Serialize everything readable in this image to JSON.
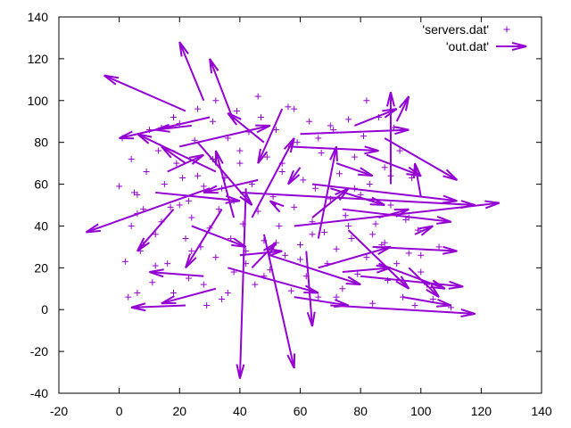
{
  "chart_data": {
    "type": "scatter",
    "xlim": [
      -20,
      140
    ],
    "ylim": [
      -40,
      140
    ],
    "xticks": [
      -20,
      0,
      20,
      40,
      60,
      80,
      100,
      120,
      140
    ],
    "yticks": [
      -40,
      -20,
      0,
      20,
      40,
      60,
      80,
      100,
      120,
      140
    ],
    "grid": false,
    "legend_position": "top-right",
    "color": "#9400d3",
    "series": [
      {
        "name": "'servers.dat'",
        "kind": "points",
        "marker": "plus",
        "points": [
          [
            0,
            59
          ],
          [
            1,
            82
          ],
          [
            2,
            23
          ],
          [
            3,
            6
          ],
          [
            4,
            72
          ],
          [
            4,
            40
          ],
          [
            5,
            56
          ],
          [
            6,
            55
          ],
          [
            6,
            8
          ],
          [
            7,
            28
          ],
          [
            8,
            31
          ],
          [
            8,
            48
          ],
          [
            9,
            66
          ],
          [
            10,
            86
          ],
          [
            11,
            13
          ],
          [
            12,
            21
          ],
          [
            13,
            76
          ],
          [
            14,
            42
          ],
          [
            14,
            87
          ],
          [
            15,
            60
          ],
          [
            16,
            22
          ],
          [
            17,
            49
          ],
          [
            18,
            8
          ],
          [
            19,
            70
          ],
          [
            20,
            89
          ],
          [
            21,
            63
          ],
          [
            22,
            34
          ],
          [
            23,
            15
          ],
          [
            23,
            52
          ],
          [
            24,
            44
          ],
          [
            25,
            81
          ],
          [
            26,
            96
          ],
          [
            27,
            30
          ],
          [
            28,
            59
          ],
          [
            29,
            2
          ],
          [
            30,
            39
          ],
          [
            31,
            72
          ],
          [
            31,
            90
          ],
          [
            32,
            25
          ],
          [
            33,
            48
          ],
          [
            34,
            5
          ],
          [
            35,
            63
          ],
          [
            36,
            82
          ],
          [
            37,
            34
          ],
          [
            38,
            18
          ],
          [
            38,
            52
          ],
          [
            39,
            95
          ],
          [
            40,
            70
          ],
          [
            41,
            41
          ],
          [
            42,
            28
          ],
          [
            43,
            85
          ],
          [
            44,
            60
          ],
          [
            45,
            12
          ],
          [
            46,
            47
          ],
          [
            47,
            92
          ],
          [
            48,
            33
          ],
          [
            49,
            73
          ],
          [
            50,
            19
          ],
          [
            51,
            54
          ],
          [
            52,
            86
          ],
          [
            53,
            40
          ],
          [
            54,
            66
          ],
          [
            55,
            26
          ],
          [
            56,
            97
          ],
          [
            57,
            9
          ],
          [
            58,
            49
          ],
          [
            59,
            80
          ],
          [
            60,
            31
          ],
          [
            61,
            62
          ],
          [
            62,
            16
          ],
          [
            63,
            90
          ],
          [
            64,
            42
          ],
          [
            65,
            58
          ],
          [
            66,
            6
          ],
          [
            67,
            75
          ],
          [
            68,
            37
          ],
          [
            69,
            22
          ],
          [
            70,
            53
          ],
          [
            71,
            86
          ],
          [
            72,
            29
          ],
          [
            73,
            65
          ],
          [
            74,
            10
          ],
          [
            75,
            45
          ],
          [
            76,
            91
          ],
          [
            77,
            34
          ],
          [
            78,
            73
          ],
          [
            79,
            17
          ],
          [
            80,
            55
          ],
          [
            81,
            83
          ],
          [
            82,
            25
          ],
          [
            83,
            60
          ],
          [
            84,
            3
          ],
          [
            85,
            41
          ],
          [
            86,
            92
          ],
          [
            87,
            31
          ],
          [
            88,
            68
          ],
          [
            89,
            14
          ],
          [
            90,
            50
          ],
          [
            91,
            87
          ],
          [
            92,
            22
          ],
          [
            93,
            76
          ],
          [
            94,
            6
          ],
          [
            95,
            43
          ],
          [
            96,
            27
          ],
          [
            97,
            63
          ],
          [
            98,
            2
          ],
          [
            99,
            38
          ],
          [
            100,
            18
          ],
          [
            102,
            12
          ],
          [
            104,
            5
          ],
          [
            106,
            30
          ],
          [
            110,
            1
          ],
          [
            28,
            12
          ],
          [
            36,
            8
          ],
          [
            48,
            16
          ],
          [
            60,
            24
          ],
          [
            72,
            6
          ],
          [
            84,
            36
          ],
          [
            96,
            44
          ],
          [
            18,
            92
          ],
          [
            32,
            100
          ],
          [
            46,
            102
          ],
          [
            58,
            96
          ],
          [
            70,
            88
          ],
          [
            82,
            100
          ],
          [
            26,
            64
          ],
          [
            40,
            76
          ],
          [
            54,
            70
          ],
          [
            66,
            82
          ],
          [
            78,
            58
          ],
          [
            90,
            64
          ],
          [
            12,
            36
          ],
          [
            24,
            28
          ],
          [
            42,
            22
          ],
          [
            52,
            32
          ],
          [
            64,
            36
          ],
          [
            76,
            40
          ],
          [
            88,
            32
          ],
          [
            100,
            26
          ],
          [
            6,
            46
          ],
          [
            20,
            50
          ],
          [
            34,
            58
          ]
        ]
      },
      {
        "name": "'out.dat'",
        "kind": "vectors",
        "vectors": [
          [
            28,
            100,
            20,
            128
          ],
          [
            22,
            95,
            -5,
            112
          ],
          [
            30,
            92,
            0,
            82
          ],
          [
            38,
            90,
            30,
            120
          ],
          [
            24,
            88,
            12,
            86
          ],
          [
            26,
            80,
            44,
            50
          ],
          [
            32,
            66,
            6,
            84
          ],
          [
            30,
            58,
            -11,
            37
          ],
          [
            22,
            70,
            14,
            78
          ],
          [
            40,
            56,
            118,
            50
          ],
          [
            12,
            56,
            40,
            52
          ],
          [
            18,
            48,
            6,
            28
          ],
          [
            34,
            48,
            22,
            20
          ],
          [
            42,
            58,
            40,
            -33
          ],
          [
            44,
            44,
            58,
            82
          ],
          [
            48,
            36,
            58,
            -28
          ],
          [
            62,
            28,
            64,
            -8
          ],
          [
            36,
            20,
            66,
            8
          ],
          [
            28,
            16,
            10,
            18
          ],
          [
            32,
            10,
            14,
            3
          ],
          [
            22,
            2,
            4,
            1
          ],
          [
            52,
            50,
            50,
            52
          ],
          [
            46,
            62,
            28,
            56
          ],
          [
            60,
            68,
            56,
            60
          ],
          [
            64,
            60,
            112,
            52
          ],
          [
            58,
            40,
            126,
            51
          ],
          [
            66,
            34,
            72,
            78
          ],
          [
            74,
            48,
            110,
            42
          ],
          [
            56,
            78,
            86,
            76
          ],
          [
            60,
            84,
            96,
            86
          ],
          [
            72,
            70,
            84,
            64
          ],
          [
            82,
            74,
            100,
            64
          ],
          [
            88,
            82,
            112,
            62
          ],
          [
            90,
            60,
            90,
            104
          ],
          [
            84,
            30,
            112,
            28
          ],
          [
            86,
            22,
            108,
            10
          ],
          [
            80,
            16,
            114,
            11
          ],
          [
            70,
            2,
            118,
            -2
          ],
          [
            94,
            6,
            110,
            2
          ],
          [
            96,
            20,
            106,
            6
          ],
          [
            76,
            38,
            96,
            10
          ],
          [
            66,
            20,
            90,
            30
          ],
          [
            50,
            26,
            80,
            12
          ],
          [
            40,
            26,
            54,
            28
          ],
          [
            38,
            44,
            32,
            76
          ],
          [
            48,
            80,
            36,
            94
          ],
          [
            54,
            96,
            46,
            70
          ],
          [
            20,
            78,
            50,
            88
          ],
          [
            16,
            66,
            28,
            74
          ],
          [
            24,
            40,
            42,
            30
          ],
          [
            44,
            20,
            52,
            32
          ],
          [
            64,
            44,
            76,
            58
          ],
          [
            70,
            58,
            88,
            50
          ],
          [
            78,
            88,
            92,
            96
          ],
          [
            92,
            90,
            96,
            102
          ],
          [
            100,
            54,
            98,
            70
          ],
          [
            98,
            36,
            104,
            40
          ],
          [
            86,
            44,
            96,
            48
          ],
          [
            74,
            18,
            90,
            20
          ],
          [
            58,
            6,
            76,
            2
          ]
        ]
      }
    ]
  }
}
